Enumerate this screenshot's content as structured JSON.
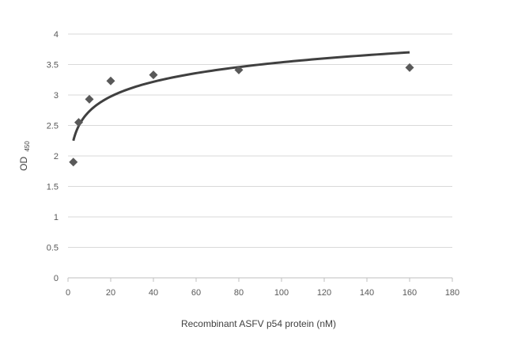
{
  "chart_data": {
    "type": "scatter",
    "xlabel": "Recombinant ASFV p54 protein (nM)",
    "ylabel": "OD",
    "ylabel_subscript": "450",
    "xlim": [
      0,
      180
    ],
    "ylim": [
      0,
      4
    ],
    "x_ticks": [
      0,
      20,
      40,
      60,
      80,
      100,
      120,
      140,
      160,
      180
    ],
    "y_ticks": [
      0,
      0.5,
      1,
      1.5,
      2,
      2.5,
      3,
      3.5,
      4
    ],
    "x_tick_labels": [
      "0",
      "20",
      "40",
      "60",
      "80",
      "100",
      "120",
      "140",
      "160",
      "180"
    ],
    "y_tick_labels": [
      "0",
      "0.5",
      "1",
      "1.5",
      "2",
      "2.5",
      "3",
      "3.5",
      "4"
    ],
    "grid": "horizontal",
    "legend": "none",
    "series": [
      {
        "marker": "diamond",
        "color": "#595959",
        "x": [
          2.5,
          5,
          10,
          20,
          40,
          80,
          160
        ],
        "y": [
          1.9,
          2.55,
          2.93,
          3.23,
          3.33,
          3.41,
          3.45
        ]
      }
    ],
    "trendline": {
      "type": "logarithmic",
      "color": "#404040",
      "x_range": [
        2.5,
        160
      ],
      "y_start": 2.25,
      "y_end": 3.7
    }
  }
}
